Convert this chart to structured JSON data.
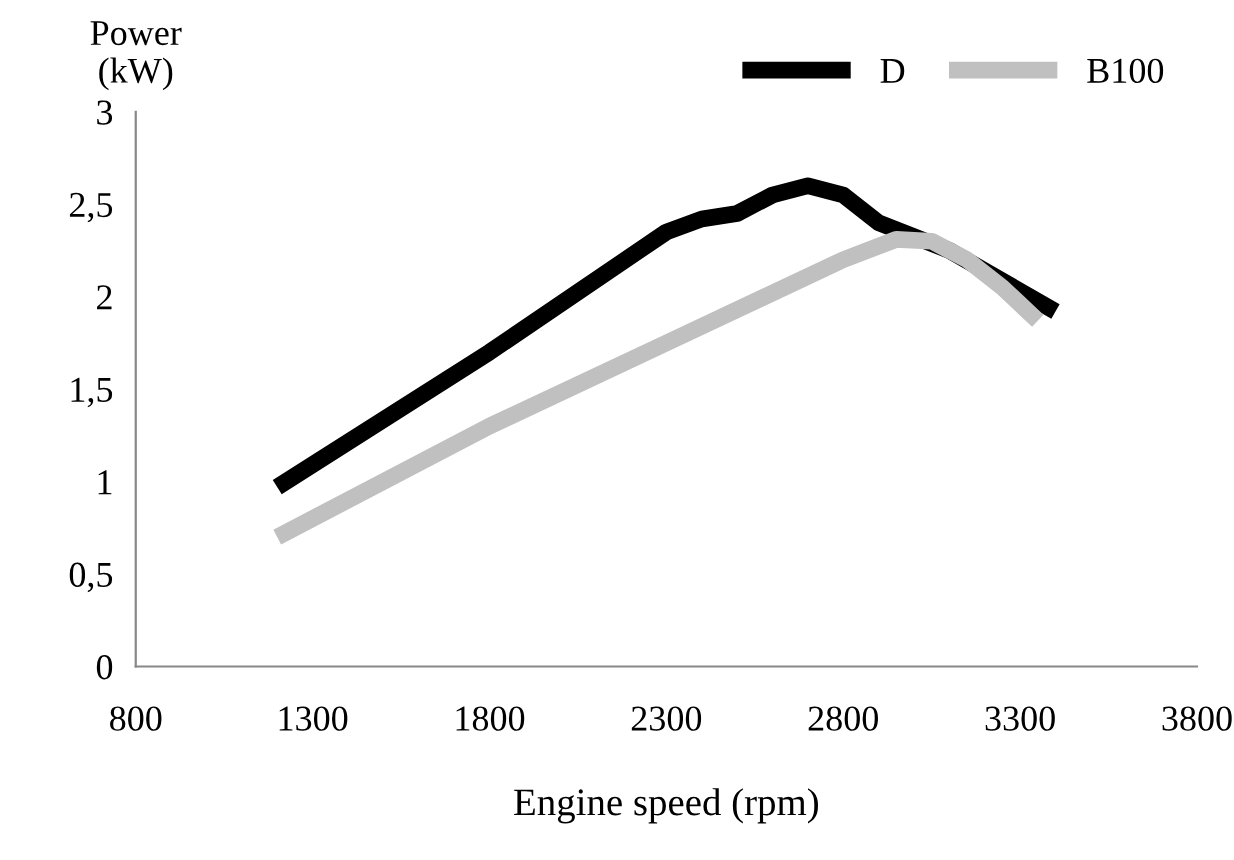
{
  "chart_data": {
    "type": "line",
    "xlabel": "Engine speed (rpm)",
    "ylabel": "Power\n(kW)",
    "xlim": [
      800,
      3800
    ],
    "xticks": [
      800,
      1300,
      1800,
      2300,
      2800,
      3300,
      3800
    ],
    "ylim": [
      0,
      3
    ],
    "yticks": [
      0,
      {
        "value": 0.5,
        "label": "0,5"
      },
      1,
      {
        "value": 1.5,
        "label": "1,5"
      },
      2,
      {
        "value": 2.5,
        "label": "2,5"
      },
      3
    ],
    "grid": false,
    "legend": "top right",
    "marker": "none",
    "line_style": "solid",
    "series": [
      {
        "name": "D",
        "color": "#000000",
        "x": [
          1200,
          1800,
          2300,
          2400,
          2500,
          2600,
          2700,
          2800,
          2900,
          3100,
          3400
        ],
        "values": [
          0.97,
          1.7,
          2.35,
          2.42,
          2.45,
          2.55,
          2.6,
          2.55,
          2.4,
          2.25,
          1.92
        ]
      },
      {
        "name": "B100",
        "color": "#c0c0c0",
        "x": [
          1200,
          1800,
          2300,
          2800,
          2950,
          3050,
          3150,
          3250,
          3350
        ],
        "values": [
          0.7,
          1.3,
          1.75,
          2.2,
          2.31,
          2.3,
          2.2,
          2.05,
          1.87
        ]
      }
    ]
  }
}
